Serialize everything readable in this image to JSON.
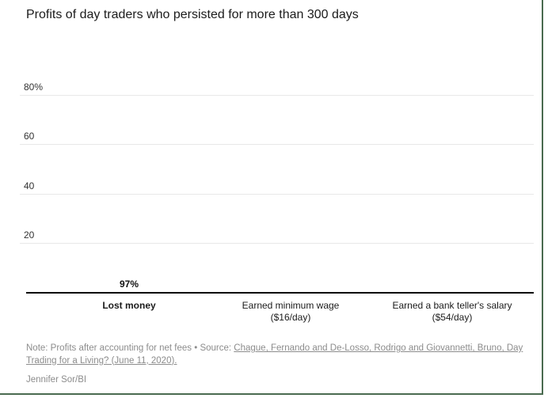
{
  "chart_data": {
    "type": "bar",
    "title": "Profits of day traders who persisted for more than 300 days",
    "xlabel": "",
    "ylabel": "",
    "ylim": [
      0,
      100
    ],
    "grid": true,
    "legend": false,
    "yticks": [
      {
        "value": 20,
        "label": "20"
      },
      {
        "value": 40,
        "label": "40"
      },
      {
        "value": 60,
        "label": "60"
      },
      {
        "value": 80,
        "label": "80%"
      }
    ],
    "bars": [
      {
        "label": "Lost money",
        "sublabel": "",
        "value": 97,
        "value_label": "97%",
        "color": "#0a1ee6",
        "bold_label": true
      },
      {
        "label": "Earned minimum wage",
        "sublabel": "($16/day)",
        "value": 1.2,
        "value_label": "",
        "color": "#afbaeb",
        "bold_label": false
      },
      {
        "label": "Earned a bank teller's salary",
        "sublabel": "($54/day)",
        "value": 0.5,
        "value_label": "",
        "color": "#14143c",
        "bold_label": false
      }
    ]
  },
  "note": {
    "prefix": "Note: Profits after accounting for net fees • Source: ",
    "link": "Chague, Fernando and De-Losso, Rodrigo and Giovannetti, Bruno, Day Trading for a Living? (June 11, 2020).",
    "credit": "Jennifer Sor/BI"
  },
  "colors": {
    "frame_border": "#4a6b50",
    "axis_line": "#000000",
    "gridline": "#e8e8e8",
    "accent_blue": "#0a1ee6"
  }
}
